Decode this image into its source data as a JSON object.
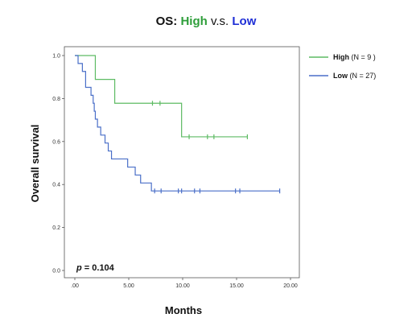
{
  "chart_data": {
    "type": "line",
    "subtype": "kaplan-meier",
    "title": {
      "prefix": "OS:",
      "series1": "High",
      "middle": "v.s.",
      "series2": "Low"
    },
    "xlabel": "Months",
    "ylabel": "Overall survival",
    "xlim": [
      0,
      20
    ],
    "ylim": [
      0,
      1.0
    ],
    "xticks": [
      0,
      5,
      10,
      15,
      20
    ],
    "xtick_labels": [
      ".00",
      "5.00",
      "10.00",
      "15.00",
      "20.00"
    ],
    "yticks": [
      0,
      0.2,
      0.4,
      0.6,
      0.8,
      1.0
    ],
    "ytick_labels": [
      "0.0",
      "0.2",
      "0.4",
      "0.6",
      "0.8",
      "1.0"
    ],
    "grid": false,
    "legend_position": "top-right",
    "annotation": "p = 0.104",
    "series": [
      {
        "name": "High",
        "legend_label": "High (N = 9 )",
        "color": "#5dbb63",
        "steps": [
          [
            0,
            1.0
          ],
          [
            1.9,
            0.889
          ],
          [
            3.7,
            0.778
          ],
          [
            9.9,
            0.622
          ],
          [
            16.0,
            0.622
          ]
        ],
        "censors": [
          [
            7.2,
            0.778
          ],
          [
            7.9,
            0.778
          ],
          [
            10.6,
            0.622
          ],
          [
            12.3,
            0.622
          ],
          [
            12.9,
            0.622
          ],
          [
            16.0,
            0.622
          ]
        ]
      },
      {
        "name": "Low",
        "legend_label": "Low (N = 27)",
        "color": "#4a6fc8",
        "steps": [
          [
            0,
            1.0
          ],
          [
            0.3,
            0.963
          ],
          [
            0.7,
            0.926
          ],
          [
            1.0,
            0.852
          ],
          [
            1.5,
            0.815
          ],
          [
            1.7,
            0.778
          ],
          [
            1.8,
            0.741
          ],
          [
            1.9,
            0.704
          ],
          [
            2.1,
            0.667
          ],
          [
            2.4,
            0.63
          ],
          [
            2.8,
            0.593
          ],
          [
            3.1,
            0.556
          ],
          [
            3.4,
            0.519
          ],
          [
            4.9,
            0.481
          ],
          [
            5.6,
            0.444
          ],
          [
            6.1,
            0.407
          ],
          [
            7.1,
            0.37
          ],
          [
            19.0,
            0.37
          ]
        ],
        "censors": [
          [
            7.4,
            0.37
          ],
          [
            8.0,
            0.37
          ],
          [
            9.6,
            0.37
          ],
          [
            9.9,
            0.37
          ],
          [
            11.1,
            0.37
          ],
          [
            11.6,
            0.37
          ],
          [
            14.9,
            0.37
          ],
          [
            15.3,
            0.37
          ],
          [
            19.0,
            0.37
          ]
        ]
      }
    ]
  }
}
